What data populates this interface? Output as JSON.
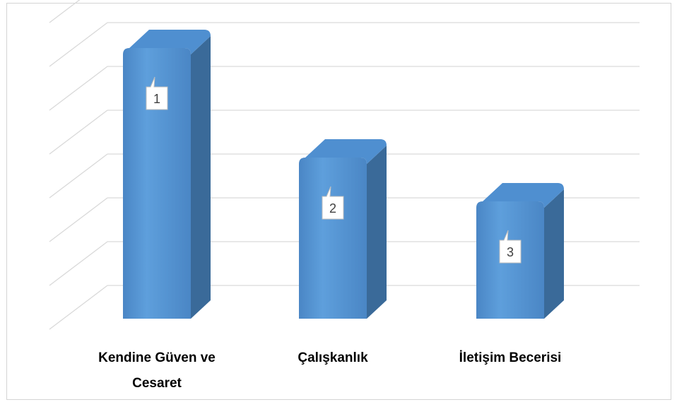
{
  "chart_data": {
    "type": "bar",
    "style": "3d-column",
    "categories": [
      "Kendine Güven ve Cesaret",
      "Çalışkanlık",
      "İletişim Becerisi"
    ],
    "category_lines": [
      [
        "Kendine Güven ve",
        "Cesaret"
      ],
      [
        "Çalışkanlık"
      ],
      [
        "İletişim Becerisi"
      ]
    ],
    "values": [
      6,
      3.5,
      2.5
    ],
    "data_labels": [
      "1",
      "2",
      "3"
    ],
    "ylim": [
      0,
      7
    ],
    "grid": true,
    "legend": "none",
    "colors": {
      "bar_front_top": "#5b9bd5",
      "bar_front_bottom": "#4a86c5",
      "bar_side": "#3a6a99",
      "bar_top": "#4f8fd0",
      "grid": "#d9d9d9",
      "frame": "#d4d4d4"
    }
  }
}
